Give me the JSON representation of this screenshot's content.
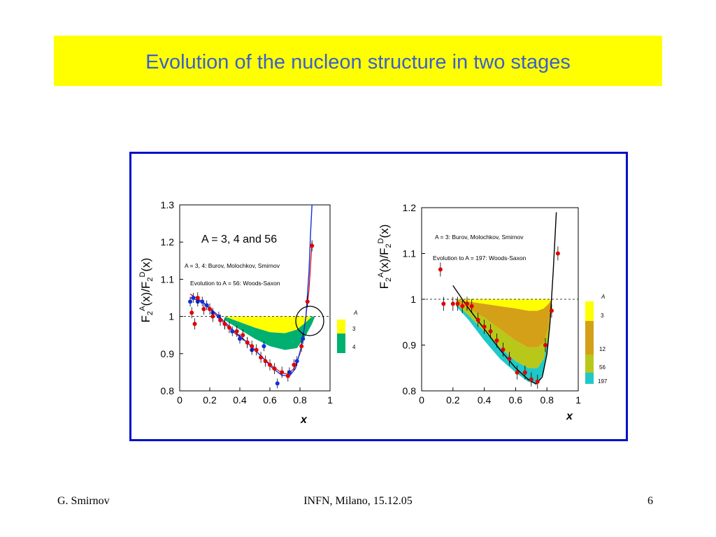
{
  "slide": {
    "title": "Evolution of the nucleon structure in two stages",
    "footer_left": "G. Smirnov",
    "footer_center": "INFN, Milano, 15.12.05",
    "footer_right": "6"
  },
  "colors": {
    "title_bg": "#ffff00",
    "title_text": "#3a5fcd",
    "frame": "#0010c8",
    "band_yellow": "#ffff00",
    "band_green": "#00b070",
    "band_orange": "#d4a017",
    "band_olive": "#b8c81a",
    "band_cyan": "#20c8c8",
    "points_red": "#e00000",
    "points_blue": "#1030e0"
  },
  "chart_data": [
    {
      "type": "scatter",
      "ylabel": "F2A(x)/F2D(x)",
      "xlabel": "x",
      "xlim": [
        0,
        1
      ],
      "ylim": [
        0.8,
        1.3
      ],
      "x_ticks": [
        "0",
        "0.2",
        "0.4",
        "0.6",
        "0.8",
        "1"
      ],
      "y_ticks": [
        "0.8",
        "0.9",
        "1",
        "1.1",
        "1.2",
        "1.3"
      ],
      "annotation_main": "A = 3, 4  and  56",
      "annotation_1": "A = 3, 4:  Burov, Molochkov, Smirnov",
      "annotation_2": "Evolution to A = 56: Woods-Saxon",
      "legend_title": "A",
      "legend": [
        "3",
        "4"
      ],
      "series": [
        {
          "name": "red points",
          "x": [
            0.08,
            0.1,
            0.12,
            0.16,
            0.2,
            0.22,
            0.27,
            0.3,
            0.33,
            0.38,
            0.42,
            0.45,
            0.48,
            0.51,
            0.54,
            0.57,
            0.6,
            0.63,
            0.68,
            0.72,
            0.76,
            0.81,
            0.85,
            0.88
          ],
          "y": [
            1.01,
            0.98,
            1.05,
            1.02,
            1.02,
            1.0,
            0.99,
            0.98,
            0.97,
            0.96,
            0.95,
            0.93,
            0.92,
            0.91,
            0.89,
            0.88,
            0.87,
            0.86,
            0.85,
            0.84,
            0.87,
            0.92,
            1.04,
            1.19
          ]
        },
        {
          "name": "blue points",
          "x": [
            0.07,
            0.09,
            0.12,
            0.15,
            0.18,
            0.22,
            0.26,
            0.3,
            0.35,
            0.4,
            0.45,
            0.48,
            0.56,
            0.65,
            0.73,
            0.78,
            0.82
          ],
          "y": [
            1.04,
            1.05,
            1.04,
            1.04,
            1.03,
            1.01,
            1.0,
            0.98,
            0.96,
            0.94,
            0.93,
            0.91,
            0.92,
            0.82,
            0.85,
            0.88,
            0.94
          ]
        }
      ],
      "curves": {
        "A4_top": {
          "x": [
            0.3,
            0.4,
            0.5,
            0.6,
            0.7,
            0.78,
            0.84,
            0.88,
            0.9
          ],
          "y": [
            1.0,
            1.0,
            1.0,
            1.0,
            1.0,
            1.0,
            1.0,
            1.0,
            1.0
          ]
        },
        "A3_bottom": {
          "x": [
            0.3,
            0.4,
            0.5,
            0.6,
            0.7,
            0.78,
            0.84,
            0.88,
            0.9
          ],
          "y": [
            1.0,
            0.985,
            0.97,
            0.958,
            0.955,
            0.965,
            0.985,
            1.0,
            1.0
          ]
        },
        "A56_bottom": {
          "x": [
            0.3,
            0.4,
            0.5,
            0.6,
            0.7,
            0.78,
            0.84,
            0.88,
            0.9
          ],
          "y": [
            0.99,
            0.965,
            0.94,
            0.92,
            0.91,
            0.915,
            0.95,
            0.98,
            1.0
          ]
        }
      }
    },
    {
      "type": "scatter",
      "ylabel": "F2A(x)/F2D(x)",
      "xlabel": "x",
      "xlim": [
        0,
        1
      ],
      "ylim": [
        0.8,
        1.2
      ],
      "x_ticks": [
        "0",
        "0.2",
        "0.4",
        "0.6",
        "0.8",
        "1"
      ],
      "y_ticks": [
        "0.8",
        "0.9",
        "1",
        "1.1",
        "1.2"
      ],
      "annotation_1": "A = 3:  Burov, Molochkov, Smirnov",
      "annotation_2": "Evolution to A = 197: Woods-Saxon",
      "legend_title": "A",
      "legend": [
        "3",
        "12",
        "56",
        "197"
      ],
      "series": [
        {
          "name": "red points",
          "x": [
            0.12,
            0.14,
            0.2,
            0.23,
            0.26,
            0.29,
            0.32,
            0.36,
            0.4,
            0.44,
            0.48,
            0.52,
            0.56,
            0.61,
            0.66,
            0.7,
            0.74,
            0.79,
            0.83,
            0.87
          ],
          "y": [
            1.065,
            0.99,
            0.99,
            0.99,
            0.985,
            0.99,
            0.985,
            0.955,
            0.94,
            0.93,
            0.91,
            0.89,
            0.87,
            0.84,
            0.84,
            0.825,
            0.82,
            0.9,
            0.975,
            1.1
          ]
        }
      ]
    }
  ]
}
